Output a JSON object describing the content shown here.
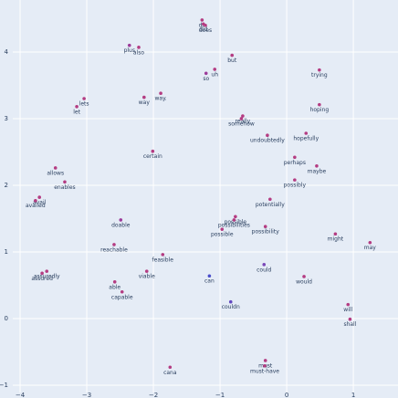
{
  "chart_data": {
    "type": "scatter",
    "x": [
      -1.27,
      -1.25,
      -1.22,
      -2.36,
      -2.22,
      -0.82,
      -1.08,
      -1.21,
      0.49,
      -3.04,
      -3.15,
      -2.14,
      -1.89,
      0.49,
      -0.66,
      -0.68,
      -0.29,
      0.29,
      -2.01,
      0.12,
      0.45,
      -3.47,
      -3.33,
      0.12,
      -3.71,
      -3.77,
      -0.25,
      -2.49,
      -0.77,
      -0.79,
      -0.97,
      -0.32,
      0.73,
      1.25,
      -2.59,
      -1.86,
      -0.34,
      -3.6,
      -3.67,
      -2.1,
      -1.16,
      0.26,
      -2.58,
      -2.47,
      -0.84,
      0.92,
      0.95,
      -1.75,
      -0.32,
      -0.33
    ],
    "y": [
      4.48,
      4.42,
      4.4,
      4.1,
      4.07,
      3.95,
      3.74,
      3.68,
      3.73,
      3.3,
      3.18,
      3.32,
      3.38,
      3.21,
      3.04,
      3.0,
      2.75,
      2.78,
      2.51,
      2.42,
      2.29,
      2.26,
      2.05,
      2.08,
      1.82,
      1.77,
      1.79,
      1.48,
      1.53,
      1.48,
      1.34,
      1.38,
      1.27,
      1.14,
      1.11,
      0.96,
      0.81,
      0.71,
      0.68,
      0.71,
      0.64,
      0.63,
      0.55,
      0.4,
      0.25,
      0.21,
      -0.01,
      -0.73,
      -0.63,
      -0.71
    ],
    "labels": [
      "do",
      "did",
      "does",
      "plus",
      "also",
      "but",
      "uh",
      "so",
      "trying",
      "lets",
      "let",
      "way",
      "way.",
      "hoping",
      "really",
      "somehow",
      "undoubtedly",
      "hopefully",
      "certain",
      "perhaps",
      "maybe",
      "allows",
      "enables",
      "possibly",
      "avail",
      "availed",
      "potentially",
      "doable",
      "possible",
      "possibilities",
      "possible",
      "possibility",
      "might",
      "may",
      "reachable",
      "feasible",
      "could",
      "assuredly",
      "assured",
      "viable",
      "can",
      "would",
      "able",
      "capable",
      "couldn",
      "will",
      "shall",
      "cana",
      "must",
      "must-have"
    ],
    "colors": [
      "#b43c82",
      "#b43c82",
      "#b43c82",
      "#9c3c9a",
      "#b43c82",
      "#b43c82",
      "#b43c82",
      "#9c3c9a",
      "#b43c82",
      "#b43c82",
      "#b43c82",
      "#b43c82",
      "#b43c82",
      "#b43c82",
      "#b43c82",
      "#b43c82",
      "#b43c82",
      "#b43c82",
      "#b43c82",
      "#b43c82",
      "#b43c82",
      "#b43c82",
      "#b43c82",
      "#b43c82",
      "#b43c82",
      "#b43c82",
      "#b43c82",
      "#9c3c9a",
      "#b43c82",
      "#b43c82",
      "#b43c82",
      "#b43c82",
      "#b43c82",
      "#b43c82",
      "#b43c82",
      "#b43c82",
      "#7a48b8",
      "#b43c82",
      "#b43c82",
      "#b43c82",
      "#4a4ecb",
      "#b43c82",
      "#b43c82",
      "#b43c82",
      "#6248c0",
      "#b43c82",
      "#b43c82",
      "#b43c82",
      "#b43c82",
      "#b43c82"
    ],
    "xlim": [
      -4.11,
      1.67
    ],
    "ylim": [
      -1.11,
      4.78
    ],
    "xticks": [
      {
        "value": -4,
        "label": "−4"
      },
      {
        "value": -3,
        "label": "−3"
      },
      {
        "value": -2,
        "label": "−2"
      },
      {
        "value": -1,
        "label": "−1"
      },
      0,
      1
    ],
    "yticks": [
      {
        "value": -1,
        "label": "−1"
      },
      0,
      1,
      2,
      3,
      4
    ],
    "grid": true
  }
}
